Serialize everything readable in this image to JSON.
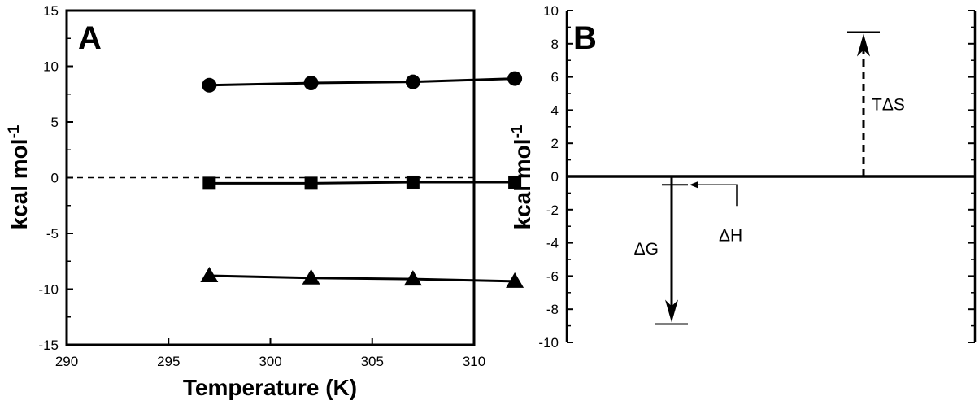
{
  "chart_data": [
    {
      "type": "line",
      "panel_label": "A",
      "xlabel": "Temperature (K)",
      "ylabel": "kcal mol",
      "ylabel_sup": "-1",
      "xlim": [
        290,
        310
      ],
      "ylim": [
        -15,
        15
      ],
      "xticks": [
        290,
        295,
        300,
        305,
        310
      ],
      "yticks": [
        15,
        10,
        5,
        0,
        -5,
        -10,
        -15
      ],
      "x": [
        297,
        302,
        307,
        312
      ],
      "reference_line": {
        "y": 0,
        "style": "dashed"
      },
      "grid": false,
      "series": [
        {
          "marker": "circle",
          "values": [
            8.3,
            8.5,
            8.6,
            8.9
          ]
        },
        {
          "marker": "square",
          "values": [
            -0.5,
            -0.5,
            -0.4,
            -0.4
          ]
        },
        {
          "marker": "triangle",
          "values": [
            -8.8,
            -9.0,
            -9.1,
            -9.3
          ]
        }
      ]
    },
    {
      "type": "bar",
      "panel_label": "B",
      "ylabel": "kcal mol",
      "ylabel_sup": "-1",
      "ylim": [
        -10,
        10
      ],
      "yticks": [
        10,
        8,
        6,
        4,
        2,
        0,
        -2,
        -4,
        -6,
        -8,
        -10
      ],
      "baseline": 0,
      "grid": false,
      "arrows": [
        {
          "label": "ΔG",
          "value": -8.9,
          "style": "solid"
        },
        {
          "label": "ΔH",
          "value": -0.5,
          "style": "thin"
        },
        {
          "label": "TΔS",
          "value": 8.7,
          "style": "dashed"
        }
      ]
    }
  ]
}
